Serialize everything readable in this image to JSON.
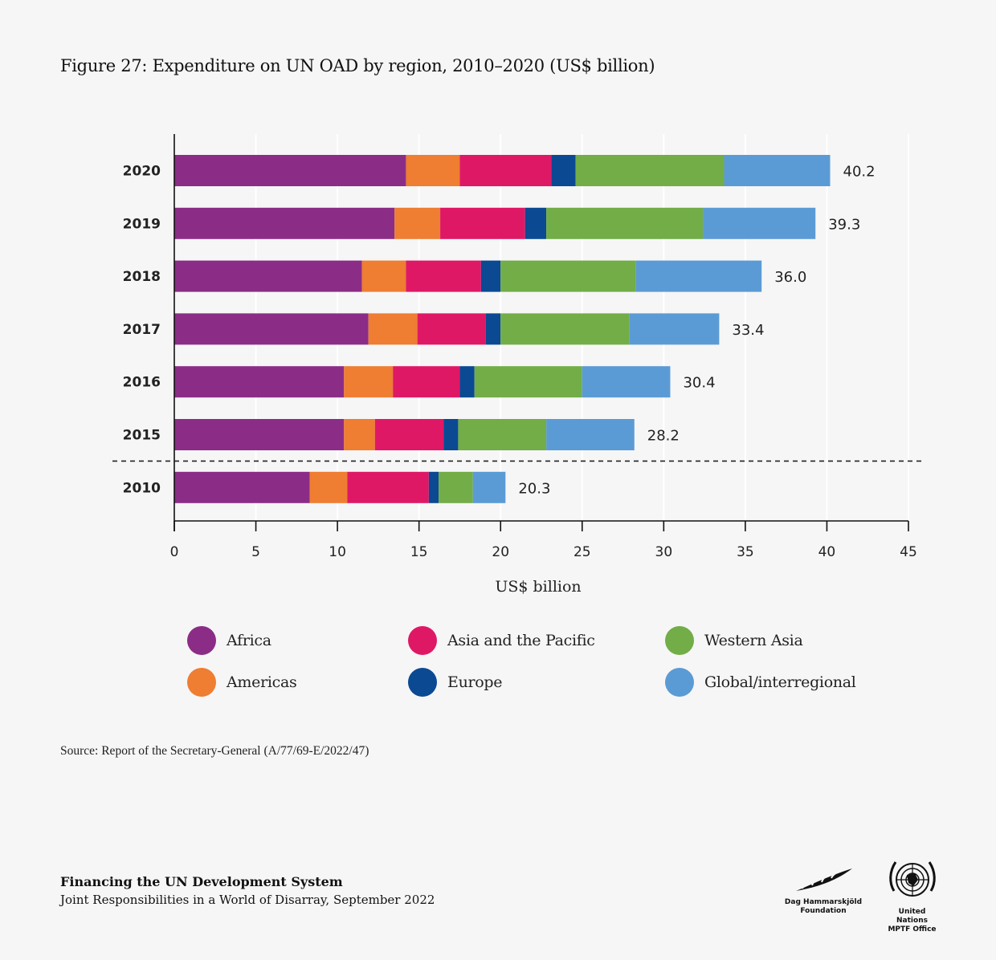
{
  "title": "Figure 27: Expenditure on UN OAD by region, 2010–2020 (US$ billion)",
  "chart_data": {
    "type": "bar",
    "orientation": "horizontal",
    "stacked": true,
    "title": "Figure 27: Expenditure on UN OAD by region, 2010–2020 (US$ billion)",
    "xlabel": "US$ billion",
    "ylabel": "",
    "xlim": [
      0,
      45
    ],
    "xticks": [
      0,
      5,
      10,
      15,
      20,
      25,
      30,
      35,
      40,
      45
    ],
    "grid": true,
    "legend_position": "bottom",
    "categories": [
      "2020",
      "2019",
      "2018",
      "2017",
      "2016",
      "2015",
      "2010"
    ],
    "separator_after": "2015",
    "totals": [
      40.2,
      39.3,
      36.0,
      33.4,
      30.4,
      28.2,
      20.3
    ],
    "total_labels": [
      "40.2",
      "39.3",
      "36.0",
      "33.4",
      "30.4",
      "28.2",
      "20.3"
    ],
    "series": [
      {
        "name": "Africa",
        "color": "#8b2d87",
        "values": [
          14.2,
          13.5,
          11.5,
          11.9,
          10.4,
          10.4,
          8.3
        ]
      },
      {
        "name": "Americas",
        "color": "#ef7d32",
        "values": [
          3.3,
          2.8,
          2.7,
          3.0,
          3.0,
          1.9,
          2.3
        ]
      },
      {
        "name": "Asia and the Pacific",
        "color": "#df1866",
        "values": [
          5.6,
          5.2,
          4.6,
          4.2,
          4.1,
          4.2,
          5.0
        ]
      },
      {
        "name": "Europe",
        "color": "#0b4993",
        "values": [
          1.5,
          1.3,
          1.2,
          0.9,
          0.9,
          0.9,
          0.6
        ]
      },
      {
        "name": "Western Asia",
        "color": "#72ad48",
        "values": [
          9.1,
          9.6,
          8.3,
          7.9,
          6.6,
          5.4,
          2.1
        ]
      },
      {
        "name": "Global/interregional",
        "color": "#5b9bd5",
        "values": [
          6.5,
          6.9,
          7.7,
          5.5,
          5.4,
          5.4,
          2.0
        ]
      }
    ]
  },
  "legend": {
    "items": [
      {
        "label": "Africa",
        "color": "#8b2d87"
      },
      {
        "label": "Asia and the Pacific",
        "color": "#df1866"
      },
      {
        "label": "Western Asia",
        "color": "#72ad48"
      },
      {
        "label": "Americas",
        "color": "#ef7d32"
      },
      {
        "label": "Europe",
        "color": "#0b4993"
      },
      {
        "label": "Global/interregional",
        "color": "#5b9bd5"
      }
    ]
  },
  "source": "Source: Report of the Secretary-General (A/77/69-E/2022/47)",
  "footer": {
    "title": "Financing the UN Development System",
    "subtitle": "Joint Responsibilities in a World of Disarray, September 2022"
  },
  "logos": {
    "dag": {
      "line1": "Dag Hammarskjöld",
      "line2": "Foundation"
    },
    "un": {
      "line1": "United Nations",
      "line2": "MPTF Office"
    }
  }
}
